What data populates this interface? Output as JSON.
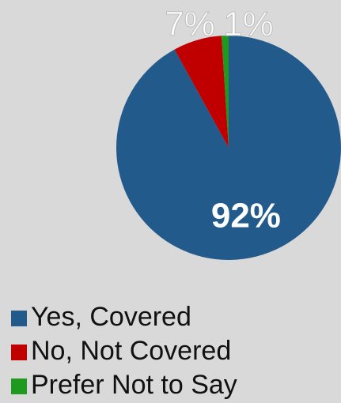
{
  "chart_data": {
    "type": "pie",
    "categories": [
      "Yes, Covered",
      "No, Not Covered",
      "Prefer Not to Say"
    ],
    "values": [
      92,
      7,
      1
    ],
    "labels": [
      "92%",
      "7%",
      "1%"
    ],
    "colors": [
      "#215a8b",
      "#c00000",
      "#1f9a1f"
    ],
    "legend_position": "bottom-left"
  }
}
